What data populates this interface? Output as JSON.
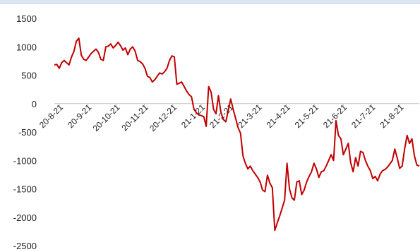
{
  "chart_data": {
    "type": "line",
    "title": "",
    "xlabel": "",
    "ylabel": "",
    "ylim": [
      -2500,
      1500
    ],
    "y_ticks": [
      -2500,
      -2000,
      -1500,
      -1000,
      -500,
      0,
      500,
      1000,
      1500
    ],
    "y_tick_labels": [
      "-2500",
      "-2000",
      "-1500",
      "-1000",
      "-500",
      "0",
      "500",
      "1000",
      "1500"
    ],
    "x_tick_labels": [
      "20-8-21",
      "20-9-21",
      "20-10-21",
      "20-11-21",
      "20-12-21",
      "21-1-21",
      "21-2-21",
      "21-3-21",
      "21-4-21",
      "21-5-21",
      "21-6-21",
      "21-7-21",
      "21-8-21"
    ],
    "grid": false,
    "legend": "none",
    "line_color": "#c00000",
    "series": [
      {
        "values": [
          680,
          690,
          620,
          720,
          760,
          720,
          680,
          820,
          920,
          1100,
          1150,
          850,
          780,
          760,
          820,
          880,
          920,
          960,
          900,
          780,
          760,
          1000,
          1010,
          1050,
          980,
          1020,
          1080,
          1020,
          940,
          980,
          860,
          960,
          1000,
          920,
          760,
          740,
          700,
          620,
          480,
          460,
          380,
          420,
          480,
          540,
          520,
          560,
          620,
          760,
          840,
          820,
          340,
          360,
          380,
          300,
          220,
          160,
          120,
          -100,
          -160,
          -200,
          -210,
          -230,
          -400,
          300,
          200,
          -100,
          -180,
          140,
          -150,
          -280,
          -320,
          -120,
          80,
          -100,
          -260,
          -420,
          -520,
          -920,
          -1050,
          -1150,
          -1100,
          -1180,
          -1240,
          -1300,
          -1380,
          -1520,
          -1550,
          -1260,
          -1400,
          -1480,
          -2230,
          -2100,
          -1980,
          -1840,
          -1700,
          -1050,
          -1500,
          -1660,
          -1700,
          -1380,
          -1360,
          -1600,
          -1520,
          -1380,
          -1280,
          -1200,
          -1050,
          -1150,
          -1300,
          -1200,
          -1180,
          -1100,
          -1000,
          -900,
          -1000,
          -300,
          -560,
          -620,
          -900,
          -800,
          -700,
          -1040,
          -1200,
          -950,
          -1100,
          -840,
          -860,
          -1000,
          -1100,
          -1180,
          -1320,
          -1280,
          -1360,
          -1240,
          -1180,
          -1160,
          -1120,
          -1060,
          -1000,
          -800,
          -960,
          -1140,
          -1100,
          -800,
          -560,
          -700,
          -620,
          -920,
          -1080,
          -1100
        ]
      }
    ]
  }
}
